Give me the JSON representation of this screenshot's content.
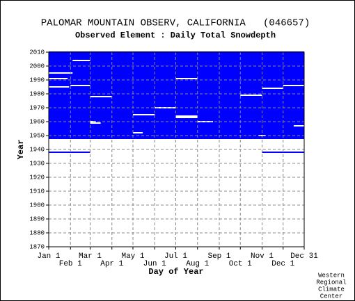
{
  "chart_data": {
    "type": "availability",
    "title": "PALOMAR MOUNTAIN OBSERV, CALIFORNIA   (046657)",
    "subtitle": "Observed Element : Daily Total Snowdepth",
    "xlabel": "Day of Year",
    "ylabel": "Year",
    "credit": [
      "Western",
      "Regional",
      "Climate",
      "Center"
    ],
    "color": "#0000ff",
    "gap_color": "#ffffff",
    "grid": true,
    "xlim": [
      1,
      365
    ],
    "xticks": [
      {
        "value": 1,
        "label": "Jan 1"
      },
      {
        "value": 32,
        "label": "Feb 1"
      },
      {
        "value": 60,
        "label": "Mar 1"
      },
      {
        "value": 91,
        "label": "Apr 1"
      },
      {
        "value": 121,
        "label": "May 1"
      },
      {
        "value": 152,
        "label": "Jun 1"
      },
      {
        "value": 182,
        "label": "Jul 1"
      },
      {
        "value": 213,
        "label": "Aug 1"
      },
      {
        "value": 244,
        "label": "Sep 1"
      },
      {
        "value": 274,
        "label": "Oct 1"
      },
      {
        "value": 305,
        "label": "Nov 1"
      },
      {
        "value": 335,
        "label": "Dec 1"
      },
      {
        "value": 365,
        "label": "Dec 31"
      }
    ],
    "ylim": [
      1870,
      2010
    ],
    "yticks": [
      1870,
      1880,
      1890,
      1900,
      1910,
      1920,
      1930,
      1940,
      1950,
      1960,
      1970,
      1980,
      1990,
      2000,
      2010
    ],
    "observed": [
      {
        "days": [
          1,
          182
        ],
        "years": [
          1948,
          2010
        ]
      },
      {
        "days": [
          182,
          365
        ],
        "years": [
          1948,
          2010
        ]
      },
      {
        "days": [
          1,
          60
        ],
        "years": [
          1938,
          1938
        ]
      },
      {
        "days": [
          305,
          365
        ],
        "years": [
          1938,
          1938
        ]
      }
    ],
    "missing": [
      {
        "days": [
          1,
          35
        ],
        "years": [
          1995,
          1995
        ]
      },
      {
        "days": [
          1,
          28
        ],
        "years": [
          1991,
          1991
        ]
      },
      {
        "days": [
          1,
          30
        ],
        "years": [
          1985,
          1985
        ]
      },
      {
        "days": [
          32,
          60
        ],
        "years": [
          1986,
          1986
        ]
      },
      {
        "days": [
          35,
          60
        ],
        "years": [
          2004,
          2004
        ]
      },
      {
        "days": [
          60,
          91
        ],
        "years": [
          1978,
          1978
        ]
      },
      {
        "days": [
          60,
          68
        ],
        "years": [
          1960,
          1960
        ]
      },
      {
        "days": [
          60,
          75
        ],
        "years": [
          1959,
          1959
        ]
      },
      {
        "days": [
          121,
          152
        ],
        "years": [
          1965,
          1965
        ]
      },
      {
        "days": [
          152,
          182
        ],
        "years": [
          1970,
          1970
        ]
      },
      {
        "days": [
          182,
          213
        ],
        "years": [
          1991,
          1991
        ]
      },
      {
        "days": [
          182,
          213
        ],
        "years": [
          1963,
          1964
        ]
      },
      {
        "days": [
          213,
          235
        ],
        "years": [
          1960,
          1960
        ]
      },
      {
        "days": [
          274,
          305
        ],
        "years": [
          1979,
          1979
        ]
      },
      {
        "days": [
          305,
          335
        ],
        "years": [
          1984,
          1984
        ]
      },
      {
        "days": [
          335,
          365
        ],
        "years": [
          1986,
          1986
        ]
      },
      {
        "days": [
          121,
          135
        ],
        "years": [
          1952,
          1952
        ]
      },
      {
        "days": [
          350,
          365
        ],
        "years": [
          1957,
          1957
        ]
      },
      {
        "days": [
          300,
          310
        ],
        "years": [
          1950,
          1950
        ]
      }
    ]
  }
}
